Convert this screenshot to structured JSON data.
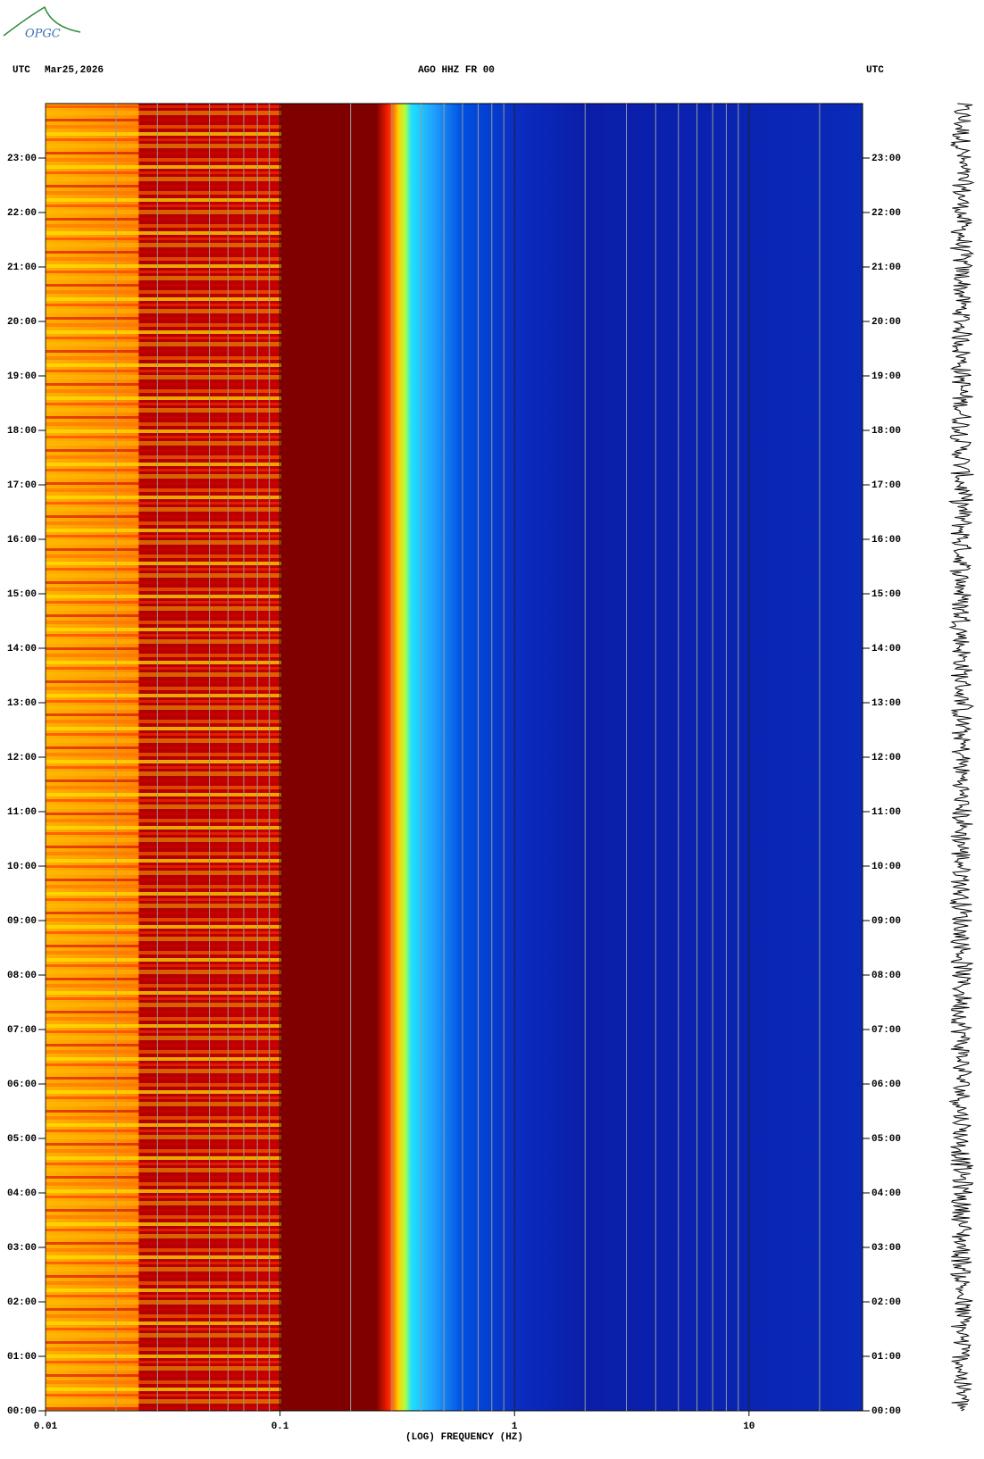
{
  "chart_data": {
    "type": "spectrogram",
    "logo": "OPGC",
    "header_left_zone": "UTC",
    "date": "Mar25,2026",
    "title": "AGO HHZ FR 00",
    "header_right_zone": "UTC",
    "xlabel": "(LOG) FREQUENCY (HZ)",
    "xscale": "log",
    "xlim": [
      0.01,
      30.5
    ],
    "xticks": [
      0.01,
      0.1,
      1,
      10
    ],
    "xminorticks": [
      0.02,
      0.03,
      0.04,
      0.05,
      0.06,
      0.07,
      0.08,
      0.09,
      0.2,
      0.3,
      0.4,
      0.5,
      0.6,
      0.7,
      0.8,
      0.9,
      2,
      3,
      4,
      5,
      6,
      7,
      8,
      9,
      20
    ],
    "ylim": [
      0,
      24
    ],
    "yticks": [
      {
        "value": 0,
        "label": "00:00"
      },
      {
        "value": 1,
        "label": "01:00"
      },
      {
        "value": 2,
        "label": "02:00"
      },
      {
        "value": 3,
        "label": "03:00"
      },
      {
        "value": 4,
        "label": "04:00"
      },
      {
        "value": 5,
        "label": "05:00"
      },
      {
        "value": 6,
        "label": "06:00"
      },
      {
        "value": 7,
        "label": "07:00"
      },
      {
        "value": 8,
        "label": "08:00"
      },
      {
        "value": 9,
        "label": "09:00"
      },
      {
        "value": 10,
        "label": "10:00"
      },
      {
        "value": 11,
        "label": "11:00"
      },
      {
        "value": 12,
        "label": "12:00"
      },
      {
        "value": 13,
        "label": "13:00"
      },
      {
        "value": 14,
        "label": "14:00"
      },
      {
        "value": 15,
        "label": "15:00"
      },
      {
        "value": 16,
        "label": "16:00"
      },
      {
        "value": 17,
        "label": "17:00"
      },
      {
        "value": 18,
        "label": "18:00"
      },
      {
        "value": 19,
        "label": "19:00"
      },
      {
        "value": 20,
        "label": "20:00"
      },
      {
        "value": 21,
        "label": "21:00"
      },
      {
        "value": 22,
        "label": "22:00"
      },
      {
        "value": 23,
        "label": "23:00"
      }
    ]
  }
}
